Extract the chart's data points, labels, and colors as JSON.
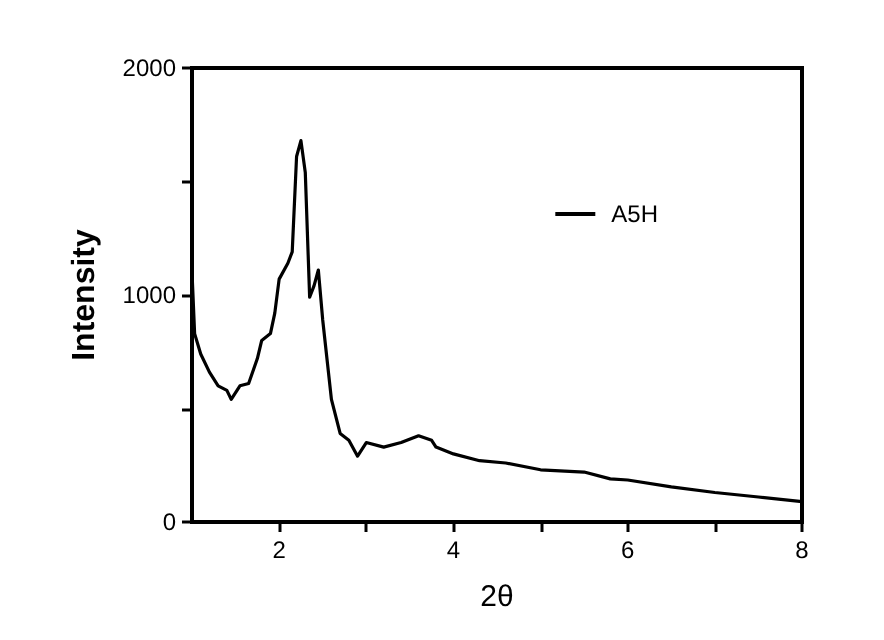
{
  "chart_data": {
    "type": "line",
    "xlabel": "2θ",
    "ylabel": "Intensity",
    "x": [
      1.0,
      1.03,
      1.1,
      1.2,
      1.3,
      1.4,
      1.45,
      1.55,
      1.65,
      1.75,
      1.8,
      1.9,
      1.95,
      2.0,
      2.1,
      2.15,
      2.2,
      2.25,
      2.3,
      2.35,
      2.4,
      2.45,
      2.5,
      2.6,
      2.7,
      2.8,
      2.9,
      3.0,
      3.2,
      3.4,
      3.6,
      3.75,
      3.8,
      4.0,
      4.3,
      4.6,
      5.0,
      5.5,
      5.8,
      6.0,
      6.5,
      7.0,
      7.5,
      8.0
    ],
    "series": [
      {
        "name": "A5H",
        "color": "#000000",
        "values": [
          1100,
          830,
          740,
          660,
          600,
          580,
          540,
          600,
          610,
          720,
          800,
          830,
          920,
          1070,
          1140,
          1190,
          1610,
          1680,
          1540,
          990,
          1040,
          1110,
          890,
          540,
          390,
          360,
          290,
          350,
          330,
          350,
          380,
          360,
          330,
          300,
          270,
          260,
          230,
          220,
          190,
          185,
          155,
          130,
          110,
          90
        ]
      }
    ],
    "xlim": [
      1,
      8
    ],
    "xticks": [
      2,
      {
        "value": 3,
        "label": null
      },
      4,
      {
        "value": 5,
        "label": null
      },
      6,
      {
        "value": 7,
        "label": null
      },
      8
    ],
    "ylim": [
      0,
      2000
    ],
    "yticks": [
      0,
      {
        "value": 500,
        "label": null
      },
      1000,
      {
        "value": 1500,
        "label": null
      },
      2000
    ],
    "grid": false,
    "legend": "top right",
    "marker": "none",
    "line_style": "solid"
  }
}
